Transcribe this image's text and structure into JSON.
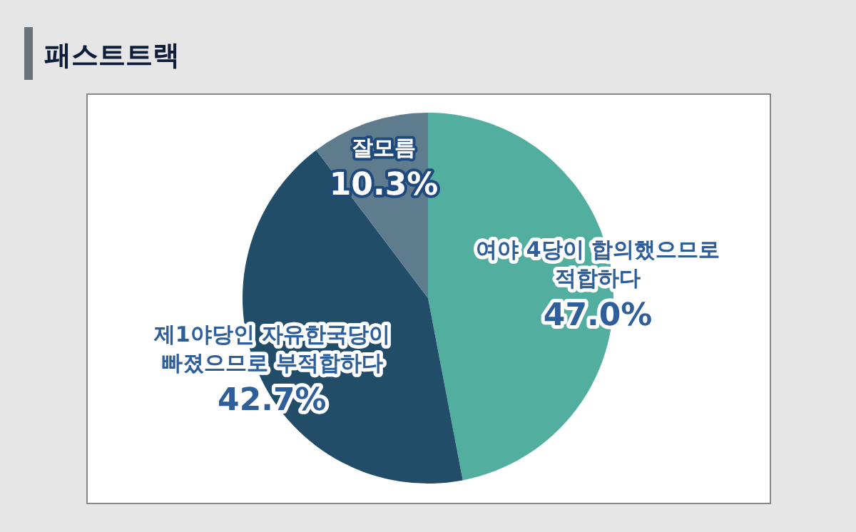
{
  "chart_data": {
    "type": "pie",
    "title": "패스트트랙",
    "categories": [
      "여야 4당이 합의했으므로\n적합하다",
      "제1야당인 자유한국당이\n빠졌으므로 부적합하다",
      "잘모름"
    ],
    "values": [
      47.0,
      42.7,
      10.3
    ],
    "value_labels": [
      "47.0%",
      "42.7%",
      "10.3%"
    ],
    "colors": [
      "#52ae9e",
      "#224d69",
      "#5f7b8e"
    ]
  }
}
